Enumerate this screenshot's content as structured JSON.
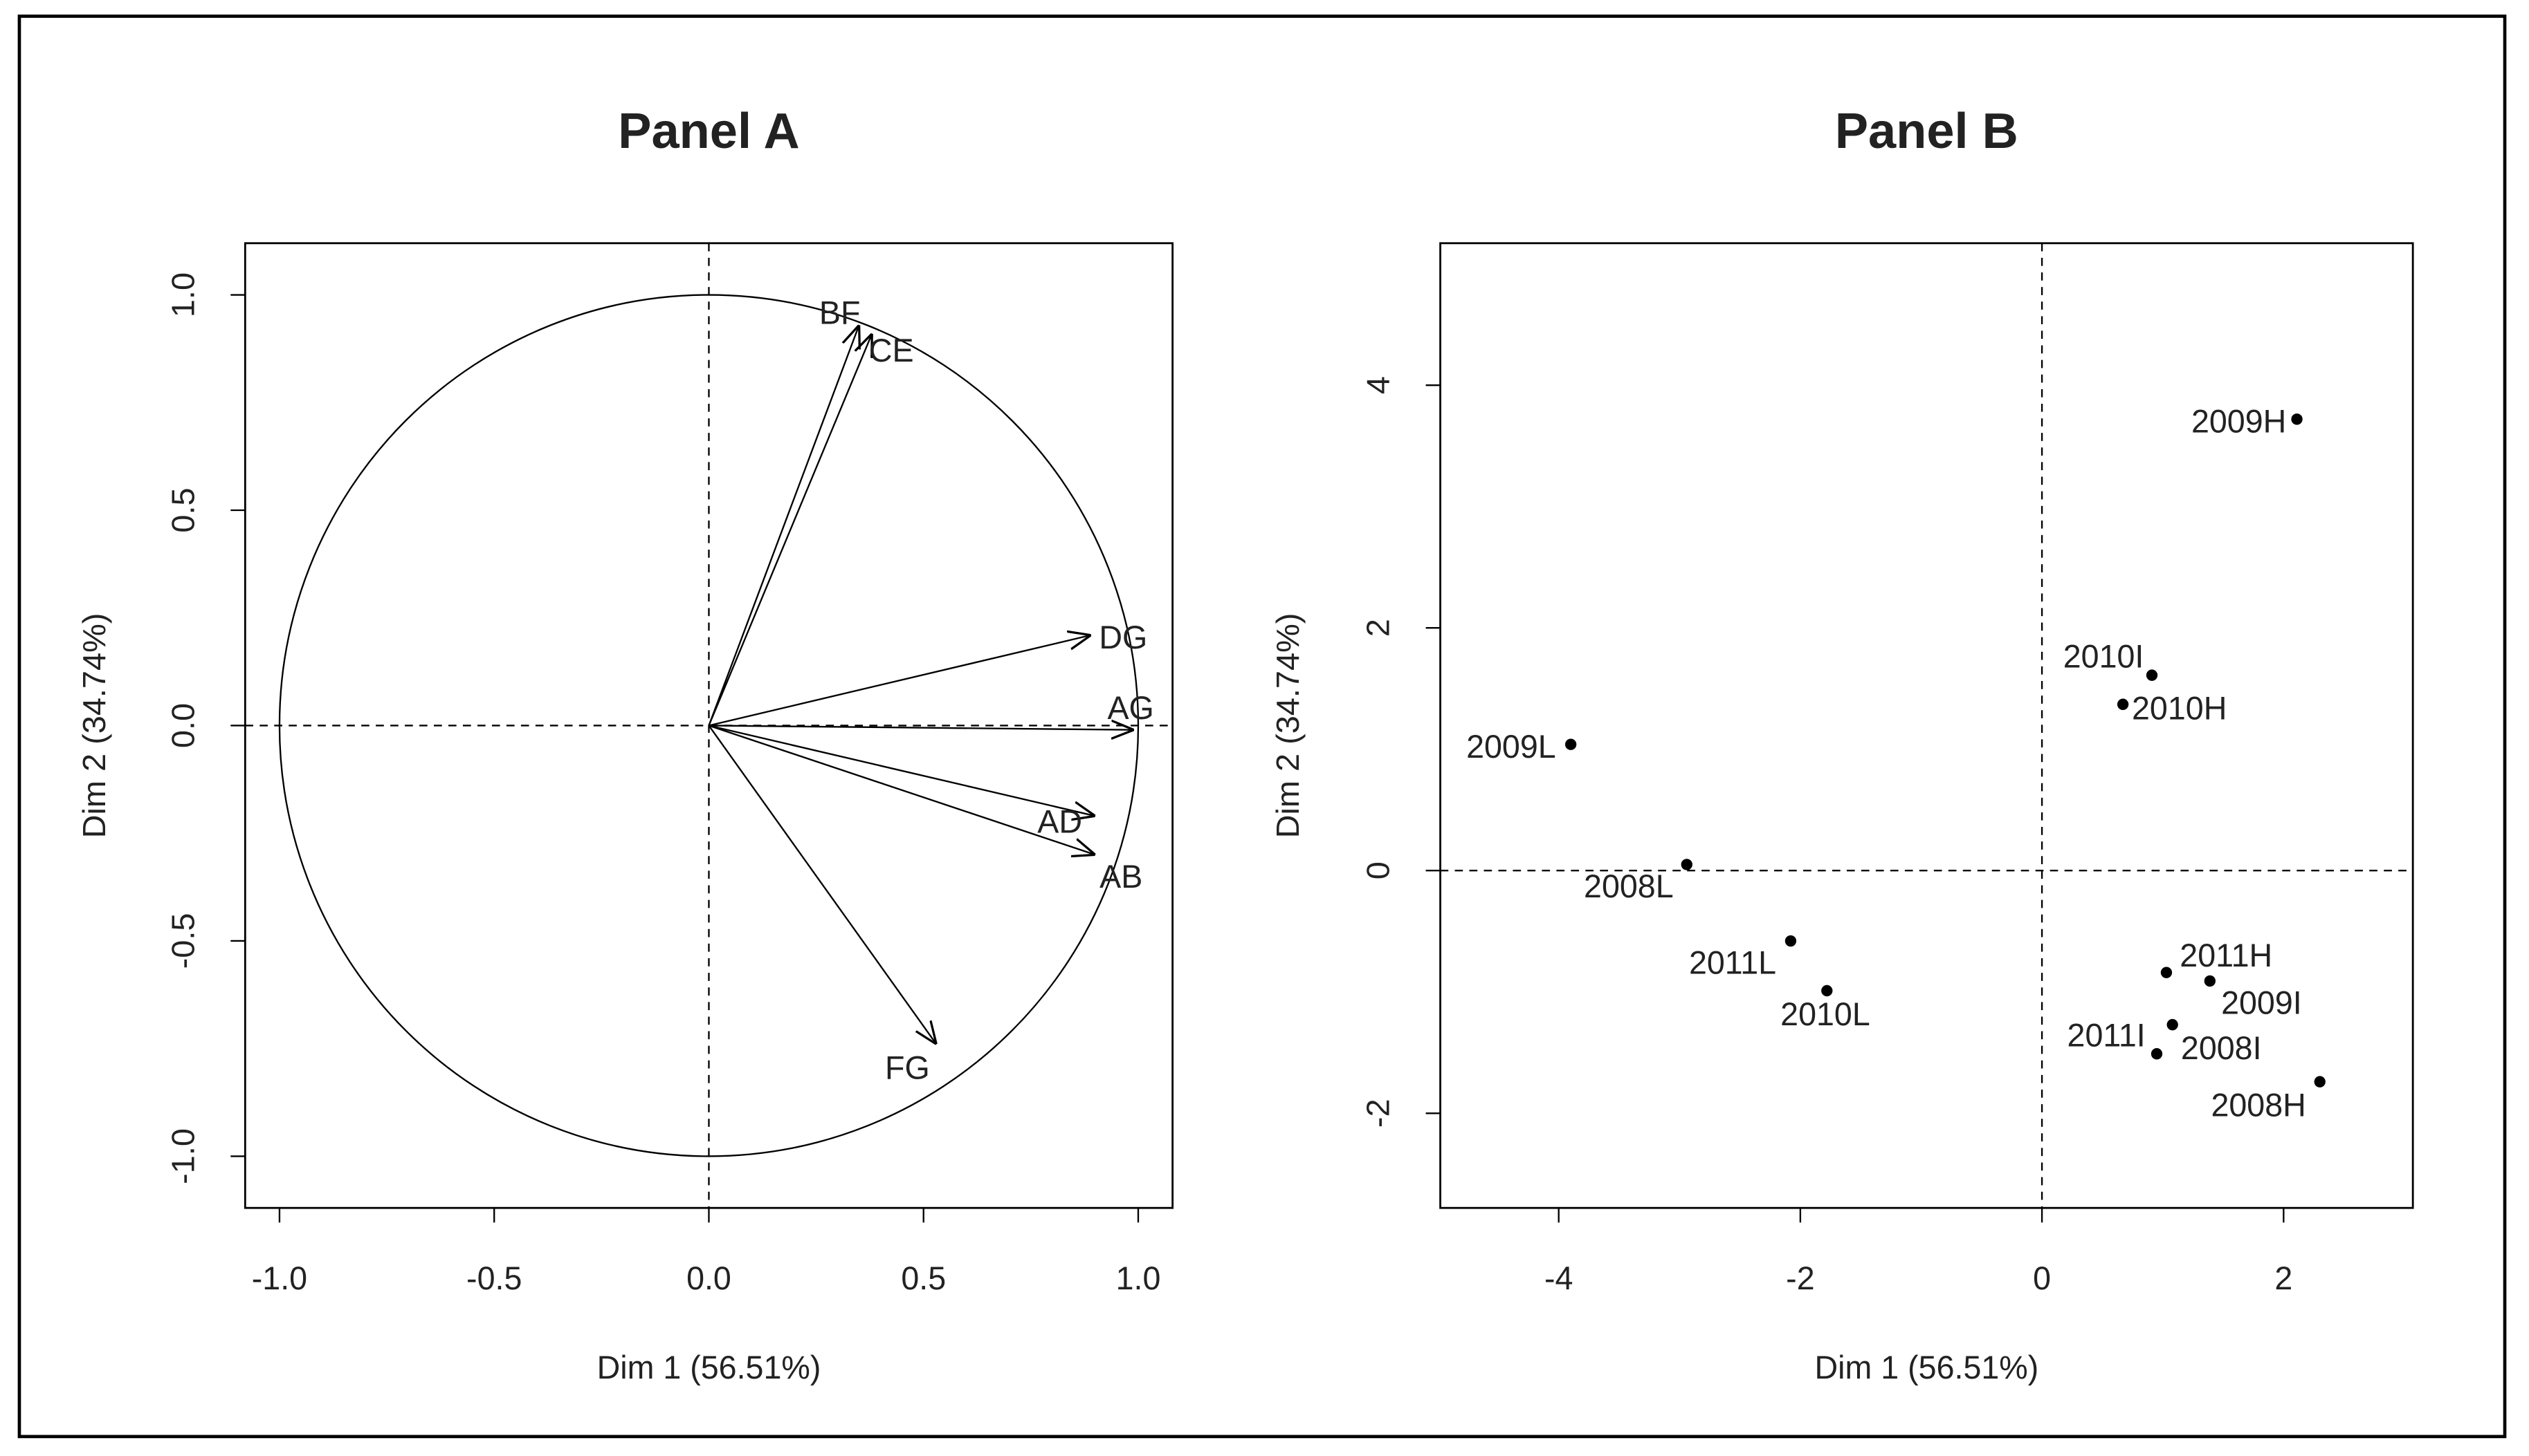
{
  "chart_data": [
    {
      "type": "vector",
      "title": "Panel A",
      "x_label": "Dim 1 (56.51%)",
      "y_label": "Dim 2 (34.74%)",
      "labels": [
        "BF",
        "CE",
        "DG",
        "AG",
        "AD",
        "AB",
        "FG"
      ],
      "x": [
        0.35,
        0.38,
        0.89,
        0.99,
        0.9,
        0.9,
        0.53
      ],
      "y": [
        0.93,
        0.91,
        0.21,
        -0.01,
        -0.21,
        -0.3,
        -0.74
      ],
      "xlim": [
        -1.08,
        1.08
      ],
      "ylim": [
        -1.12,
        1.12
      ],
      "xticks": [
        {
          "value": -1,
          "label": "-1.0"
        },
        -0.5,
        {
          "value": 0,
          "label": "0.0"
        },
        0.5,
        {
          "value": 1,
          "label": "1.0"
        }
      ],
      "yticks": [
        {
          "value": -1,
          "label": "-1.0"
        },
        -0.5,
        {
          "value": 0,
          "label": "0.0"
        },
        0.5,
        {
          "value": 1,
          "label": "1.0"
        }
      ],
      "unit_circle": true,
      "reference_lines": true,
      "color": "#000000"
    },
    {
      "type": "scatter",
      "title": "Panel B",
      "x_label": "Dim 1 (56.51%)",
      "y_label": "Dim 2 (34.74%)",
      "labels": [
        "2009H",
        "2010I",
        "2010H",
        "2009L",
        "2008L",
        "2011L",
        "2010L",
        "2011H",
        "2009I",
        "2011I",
        "2008I",
        "2008H"
      ],
      "x": [
        2.11,
        0.91,
        0.67,
        -3.9,
        -2.94,
        -2.08,
        -1.78,
        1.03,
        1.39,
        1.08,
        0.95,
        2.3
      ],
      "y": [
        3.72,
        1.61,
        1.37,
        1.04,
        0.05,
        -0.58,
        -0.99,
        -0.84,
        -0.91,
        -1.27,
        -1.51,
        -1.74
      ],
      "xlim": [
        -4.98,
        3.07
      ],
      "ylim": [
        -2.78,
        5.17
      ],
      "xticks": [
        -4,
        -2,
        0,
        2
      ],
      "yticks": [
        -2,
        0,
        2,
        4
      ],
      "reference_lines": true,
      "color": "#000000"
    }
  ]
}
